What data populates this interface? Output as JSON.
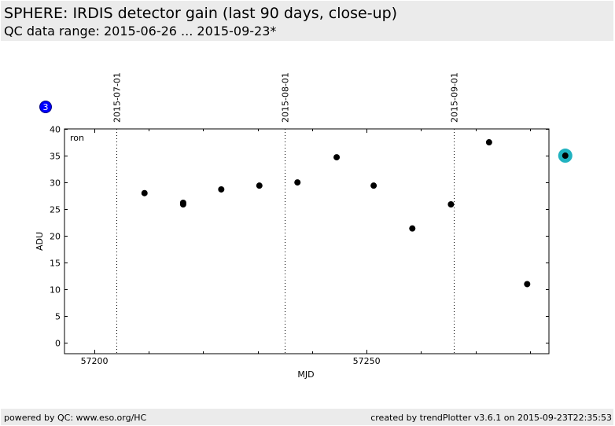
{
  "header": {
    "title": "SPHERE: IRDIS detector gain (last 90 days, close-up)",
    "subtitle": "QC data range: 2015-06-26 ... 2015-09-23*"
  },
  "footer": {
    "left": "powered by QC: www.eso.org/HC",
    "right": "created by trendPlotter v3.6.1 on 2015-09-23T22:35:53"
  },
  "badge": {
    "label": "3",
    "color": "#0000ff"
  },
  "chart_data": {
    "type": "scatter",
    "xlabel": "MJD",
    "ylabel": "ADU",
    "panel_label": "ron",
    "xlim": [
      57194.5,
      57283.5
    ],
    "ylim": [
      -2,
      40
    ],
    "x_ticks": [
      57200,
      57250
    ],
    "x_tick_labels": [
      "57200",
      "57250"
    ],
    "y_ticks": [
      0,
      5,
      10,
      15,
      20,
      25,
      30,
      35,
      40
    ],
    "y_tick_labels": [
      "0",
      "5",
      "10",
      "15",
      "20",
      "25",
      "30",
      "35",
      "40"
    ],
    "date_markers": [
      {
        "x": 57204.0,
        "label": "2015-07-01"
      },
      {
        "x": 57235.0,
        "label": "2015-08-01"
      },
      {
        "x": 57266.0,
        "label": "2015-09-01"
      }
    ],
    "points": [
      {
        "x": 57209.2,
        "y": 28.0
      },
      {
        "x": 57216.3,
        "y": 26.2
      },
      {
        "x": 57216.3,
        "y": 25.9
      },
      {
        "x": 57223.3,
        "y": 28.7
      },
      {
        "x": 57230.3,
        "y": 29.4
      },
      {
        "x": 57237.3,
        "y": 30.0
      },
      {
        "x": 57244.5,
        "y": 34.7
      },
      {
        "x": 57251.3,
        "y": 29.4
      },
      {
        "x": 57258.4,
        "y": 21.4
      },
      {
        "x": 57265.5,
        "y": 25.9
      },
      {
        "x": 57272.5,
        "y": 37.5
      },
      {
        "x": 57279.5,
        "y": 11.0
      },
      {
        "x": 57286.5,
        "y": 35.0
      }
    ],
    "highlight": {
      "x": 57286.5,
      "y": 35.0,
      "color": "#20b2c0"
    },
    "point_color": "#000000",
    "grid": false
  }
}
